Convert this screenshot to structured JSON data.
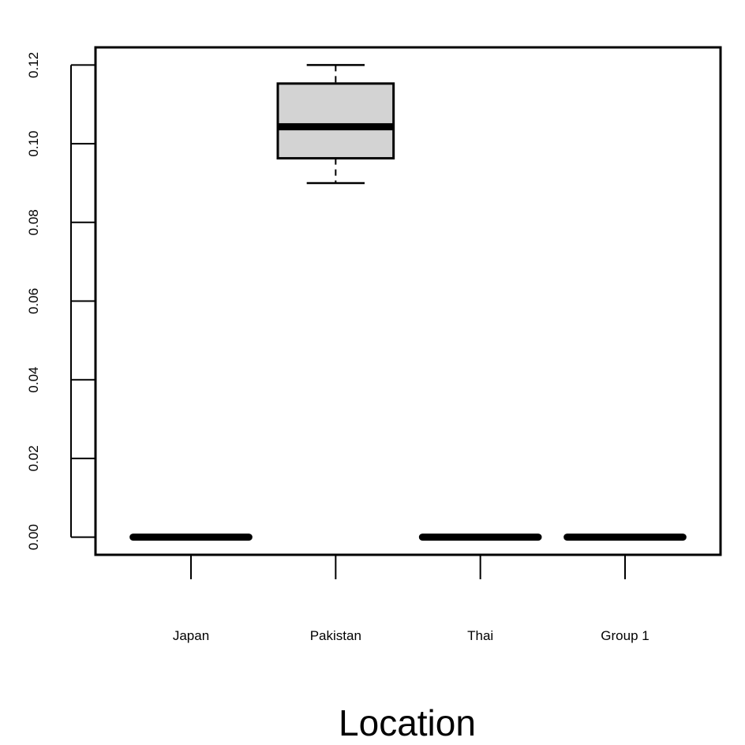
{
  "chart_data": {
    "type": "boxplot",
    "title": "",
    "xlabel": "Location",
    "ylabel": "",
    "ylim": [
      -0.0045,
      0.1245
    ],
    "y_ticks": [
      "0.00",
      "0.02",
      "0.04",
      "0.06",
      "0.08",
      "0.10",
      "0.12"
    ],
    "grid": false,
    "categories": [
      "Japan",
      "Pakistan",
      "Thai",
      "Group 1"
    ],
    "boxes": [
      {
        "category": "Japan",
        "min": 0,
        "q1": 0,
        "median": 0,
        "q3": 0,
        "max": 0
      },
      {
        "category": "Pakistan",
        "min": 0.09,
        "q1": 0.0963,
        "median": 0.1043,
        "q3": 0.1153,
        "max": 0.12
      },
      {
        "category": "Thai",
        "min": 0,
        "q1": 0,
        "median": 0,
        "q3": 0,
        "max": 0
      },
      {
        "category": "Group 1",
        "min": 0,
        "q1": 0,
        "median": 0,
        "q3": 0,
        "max": 0
      }
    ],
    "box_fill": "#d3d3d3",
    "line_color": "#000000"
  }
}
